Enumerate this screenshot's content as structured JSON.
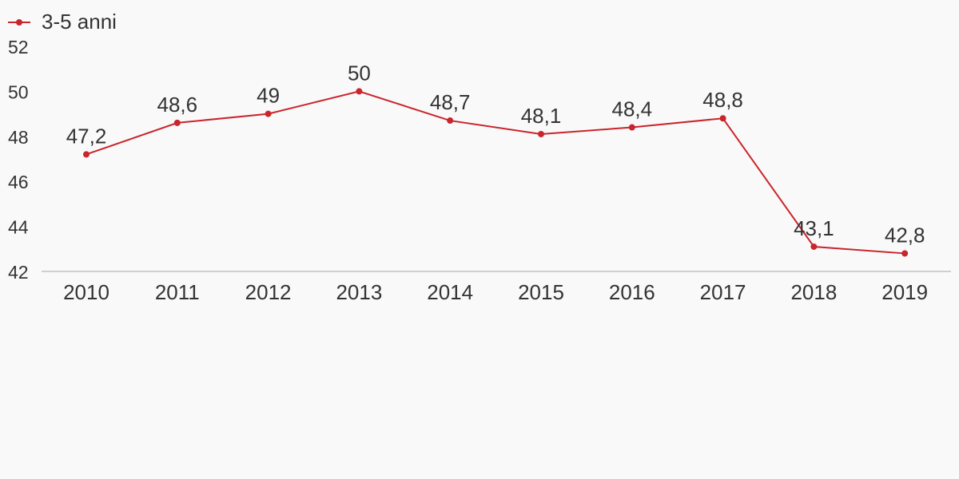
{
  "chart_data": {
    "type": "line",
    "categories": [
      "2010",
      "2011",
      "2012",
      "2013",
      "2014",
      "2015",
      "2016",
      "2017",
      "2018",
      "2019"
    ],
    "series": [
      {
        "name": "3-5 anni",
        "values": [
          47.2,
          48.6,
          49,
          50,
          48.7,
          48.1,
          48.4,
          48.8,
          43.1,
          42.8
        ],
        "labels": [
          "47,2",
          "48,6",
          "49",
          "50",
          "48,7",
          "48,1",
          "48,4",
          "48,8",
          "43,1",
          "42,8"
        ],
        "color": "#c9252c"
      }
    ],
    "y_ticks": [
      "42",
      "44",
      "46",
      "48",
      "50",
      "52"
    ],
    "ylim": [
      42,
      52
    ],
    "grid": false,
    "legend_position": "top-left",
    "axis_color": "#d0d0d0",
    "text_color": "#333333",
    "background": "#f9f9f9"
  }
}
